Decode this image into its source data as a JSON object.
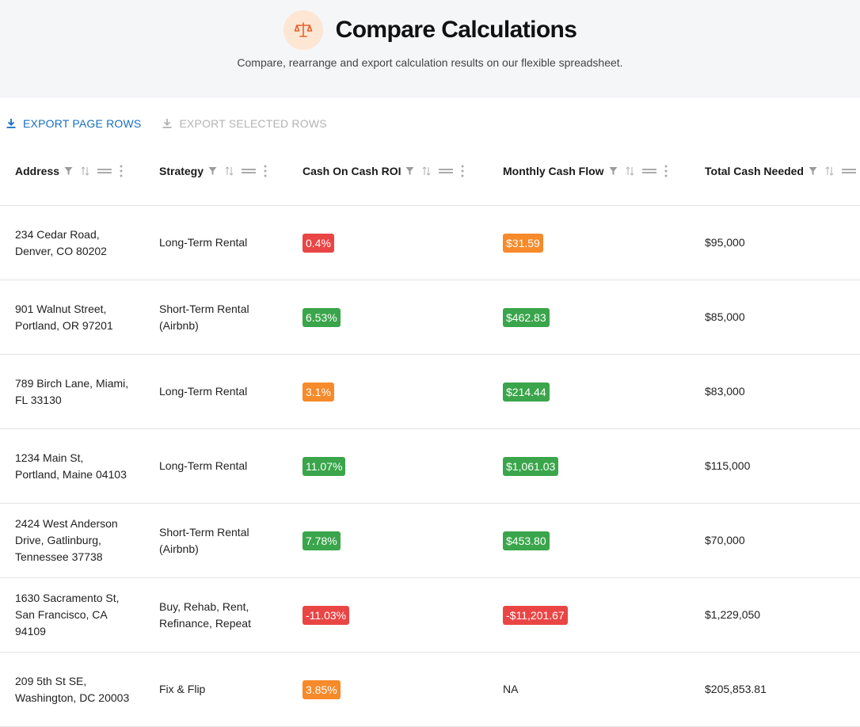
{
  "header": {
    "title": "Compare Calculations",
    "subtitle": "Compare, rearrange and export calculation results on our flexible spreadsheet.",
    "icon": "scale-icon",
    "icon_color": "#e8612c",
    "icon_bg": "#fde6d4"
  },
  "toolbar": {
    "export_page_label": "EXPORT PAGE ROWS",
    "export_selected_label": "EXPORT SELECTED ROWS",
    "active_color": "#1670c0",
    "disabled_color": "#b3b3b3"
  },
  "columns": [
    {
      "label": "Address"
    },
    {
      "label": "Strategy"
    },
    {
      "label": "Cash On Cash ROI"
    },
    {
      "label": "Monthly Cash Flow"
    },
    {
      "label": "Total Cash Needed"
    }
  ],
  "badge_colors": {
    "red": "#ea4545",
    "orange": "#f78a2a",
    "green": "#3aa54b"
  },
  "rows": [
    {
      "address": "234 Cedar Road,\nDenver, CO 80202",
      "strategy": "Long-Term Rental",
      "roi": "0.4%",
      "roi_color": "red",
      "cash_flow": "$31.59",
      "flow_color": "orange",
      "total_cash": "$95,000"
    },
    {
      "address": "901 Walnut Street,\nPortland, OR 97201",
      "strategy": "Short-Term Rental\n(Airbnb)",
      "roi": "6.53%",
      "roi_color": "green",
      "cash_flow": "$462.83",
      "flow_color": "green",
      "total_cash": "$85,000"
    },
    {
      "address": "789 Birch Lane, Miami,\nFL 33130",
      "strategy": "Long-Term Rental",
      "roi": "3.1%",
      "roi_color": "orange",
      "cash_flow": "$214.44",
      "flow_color": "green",
      "total_cash": "$83,000"
    },
    {
      "address": "1234 Main St,\nPortland, Maine 04103",
      "strategy": "Long-Term Rental",
      "roi": "11.07%",
      "roi_color": "green",
      "cash_flow": "$1,061.03",
      "flow_color": "green",
      "total_cash": "$115,000"
    },
    {
      "address": "2424 West Anderson\nDrive, Gatlinburg,\nTennessee 37738",
      "strategy": "Short-Term Rental\n(Airbnb)",
      "roi": "7.78%",
      "roi_color": "green",
      "cash_flow": "$453.80",
      "flow_color": "green",
      "total_cash": "$70,000"
    },
    {
      "address": "1630 Sacramento St,\nSan Francisco, CA\n94109",
      "strategy": "Buy, Rehab, Rent,\nRefinance, Repeat",
      "roi": "-11.03%",
      "roi_color": "red",
      "cash_flow": "-$11,201.67",
      "flow_color": "red",
      "total_cash": "$1,229,050"
    },
    {
      "address": "209 5th St SE,\nWashington, DC 20003",
      "strategy": "Fix & Flip",
      "roi": "3.85%",
      "roi_color": "orange",
      "cash_flow": "NA",
      "flow_color": "none",
      "total_cash": "$205,853.81"
    }
  ]
}
